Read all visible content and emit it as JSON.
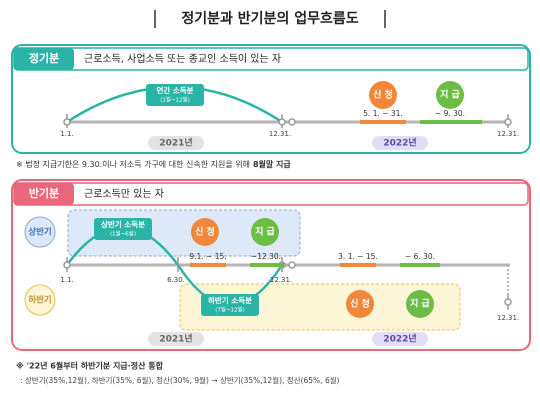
{
  "title": "정기분과 반기분의 업무흐름도",
  "regular": {
    "tab": "정기분",
    "target": "근로소득, 사업소득 또는 종교인 소득이 있는 자",
    "income": {
      "label": "연간 소득분",
      "period": "(1월~12월)"
    },
    "apply": "신 청",
    "pay": "지 급",
    "apply_period": "5. 1. ~ 31.",
    "pay_period": "~ 9. 30.",
    "dates": [
      "1.1.",
      "12.31.",
      "12.31."
    ],
    "years": [
      "2021년",
      "2022년"
    ]
  },
  "regular_note": {
    "text": "※ 법정 지급기한은 9.30.이나 저소득 가구에 대한 신속한 지원을 위해",
    "emphasis": "8월말 지급"
  },
  "semiannual": {
    "tab": "반기분",
    "target": "근로소득만 있는 자",
    "first_half": {
      "label": "상반기",
      "income": "상반기 소득분",
      "period": "(1월~6월)",
      "apply": "신 청",
      "pay": "지 급",
      "apply_period": "9.1. ~ 15.",
      "pay_period": "~12.30."
    },
    "second_half": {
      "label": "하반기",
      "income": "하반기 소득분",
      "period": "(7월~12월)",
      "apply": "신 청",
      "pay": "지 급",
      "apply_period": "3. 1. ~ 15.",
      "pay_period": "~ 6. 30."
    },
    "dates": [
      "1.1.",
      "6.30.",
      "12.31.",
      "12.31."
    ],
    "years": [
      "2021년",
      "2022년"
    ]
  },
  "semiannual_note": {
    "title": "※ '22년 6월부터 하반기분 지급·정산 통합",
    "detail": ": 상반기(35%,12월), 하반기(35%, 6월), 정산(30%, 9월) → 상반기(35%,12월), 정산(65%, 6월)"
  }
}
